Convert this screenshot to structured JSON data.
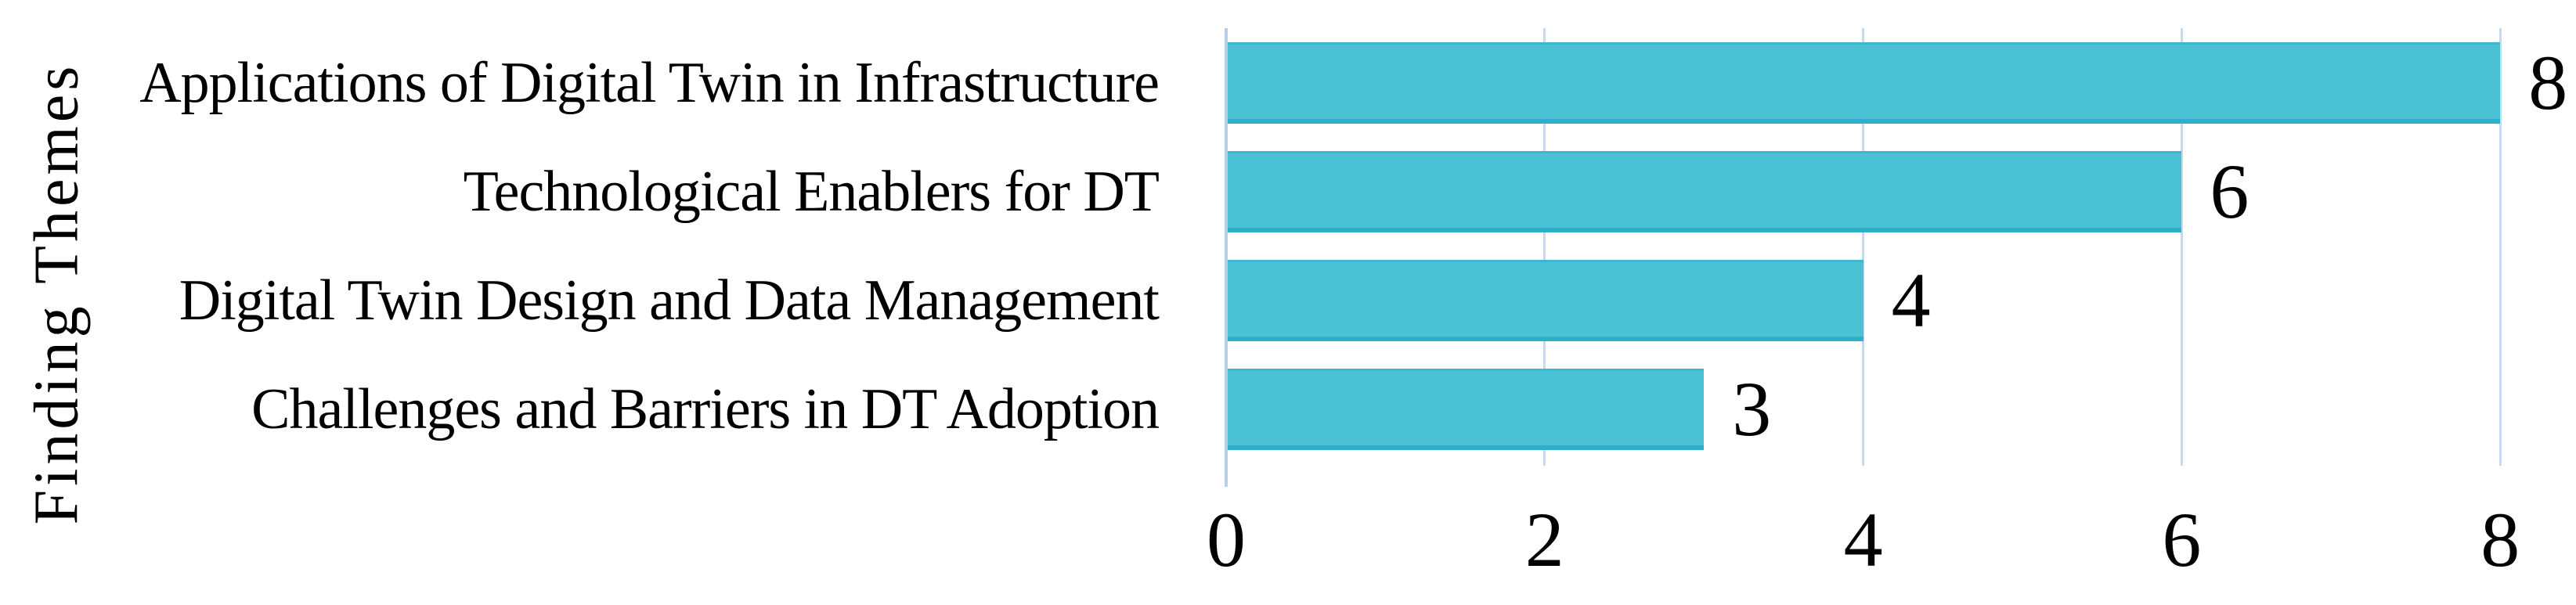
{
  "chart_data": {
    "type": "bar",
    "orientation": "horizontal",
    "title": "",
    "xlabel": "",
    "ylabel": "Finding Themes",
    "categories": [
      "Applications of Digital Twin in Infrastructure",
      "Technological Enablers for DT",
      "Digital Twin Design and Data Management",
      "Challenges and Barriers in DT Adoption"
    ],
    "values": [
      8,
      6,
      4,
      3
    ],
    "data_labels": [
      "8",
      "6",
      "4",
      "3"
    ],
    "xlim": [
      0,
      8
    ],
    "x_ticks": [
      0,
      2,
      4,
      6,
      8
    ],
    "grid": true,
    "legend": false,
    "colors": {
      "bar_fill": "#4bc1d5",
      "bar_edge_top": "#3ab8cd",
      "bar_edge_bottom": "#2cb0c8",
      "gridline": "#c7d9f0",
      "zero_axis_line": "#b5cfec",
      "text": "#000000",
      "background": "#ffffff"
    }
  }
}
